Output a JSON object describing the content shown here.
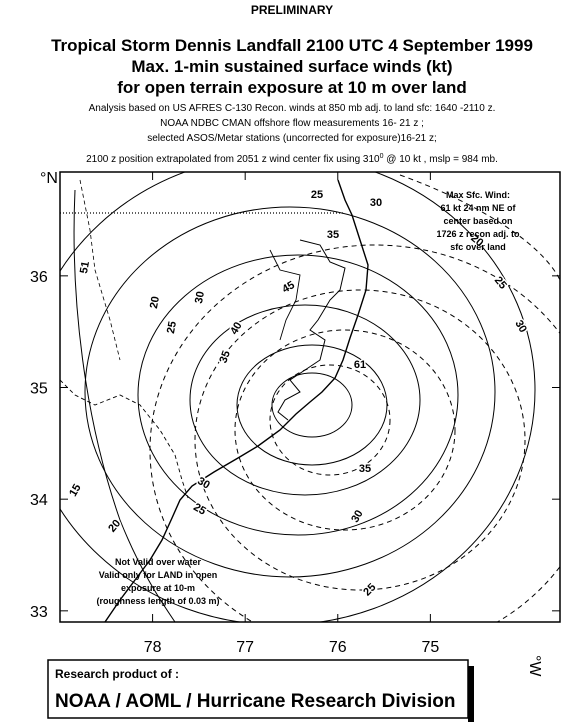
{
  "header": {
    "status": "PRELIMINARY",
    "title_lines": [
      "Tropical Storm Dennis Landfall 2100 UTC 4 September 1999",
      "Max. 1-min sustained surface winds (kt)",
      "for open terrain  exposure at 10 m over land"
    ],
    "notes": [
      "Analysis based on US AFRES C-130 Recon. winds at 850 mb adj. to land sfc: 1640 -2110 z.",
      "NOAA NDBC CMAN offshore flow measurements 16- 21 z ;",
      "selected ASOS/Metar stations (uncorrected for exposure)16-21 z;"
    ],
    "position_note": {
      "before": "2100 z  position extrapolated from 2051 z wind center fix  using 310",
      "superscript": "0",
      "after": " @ 10 kt , mslp = 984 mb."
    }
  },
  "map": {
    "lon_lim": [
      79,
      73.6
    ],
    "lat_lim": [
      32.9,
      36.93
    ],
    "lon_ticks": [
      78,
      77,
      76,
      75
    ],
    "lat_ticks": [
      33,
      34,
      35,
      36
    ],
    "lat_axis_label": "°N",
    "lon_axis_label": "°W",
    "contour_labels": [
      51,
      25,
      30,
      35,
      45,
      40,
      35,
      30,
      25,
      20,
      15,
      20,
      25,
      30,
      35,
      30,
      25,
      30,
      25,
      20,
      61
    ],
    "max_wind_note": [
      "Max Sfc. Wind:",
      "61 kt  24 nm NE of",
      "center based on",
      "1726 z recon adj. to",
      "sfc over land"
    ],
    "validity_note": [
      "Not Valid over water",
      "Valid only for LAND in open",
      "exposure at 10-m",
      "(roughness length of 0.03 m)"
    ]
  },
  "footer": {
    "small": "Research product of :",
    "large": "NOAA / AOML / Hurricane Research Division"
  }
}
